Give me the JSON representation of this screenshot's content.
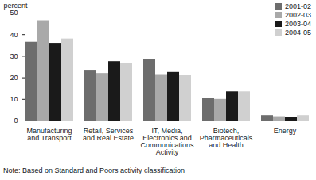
{
  "chart_data": {
    "type": "bar",
    "y_label": "percent",
    "note": "Note: Based on Standard and Poors activity classification",
    "categories": [
      "Manufacturing and Transport",
      "Retail, Services and Real Estate",
      "IT, Media, Electronics and Communications Activity",
      "Biotech, Pharmaceuticals and Health",
      "Energy"
    ],
    "series": [
      {
        "name": "2001-02",
        "color": "#6d6d6d",
        "values": [
          36.5,
          23.5,
          28.5,
          10.5,
          2.5
        ]
      },
      {
        "name": "2002-03",
        "color": "#a9a9a9",
        "values": [
          46.5,
          22,
          21.5,
          10,
          2
        ]
      },
      {
        "name": "2003-04",
        "color": "#1a1a1a",
        "values": [
          36,
          27.5,
          22.5,
          13.5,
          1.5
        ]
      },
      {
        "name": "2004-05",
        "color": "#d0d0d0",
        "values": [
          38,
          26.5,
          21,
          13.5,
          2.5
        ]
      }
    ],
    "ylim": [
      0,
      50
    ],
    "yticks": [
      0,
      10,
      20,
      30,
      40,
      50
    ],
    "grid": false,
    "legend": "top-right"
  }
}
